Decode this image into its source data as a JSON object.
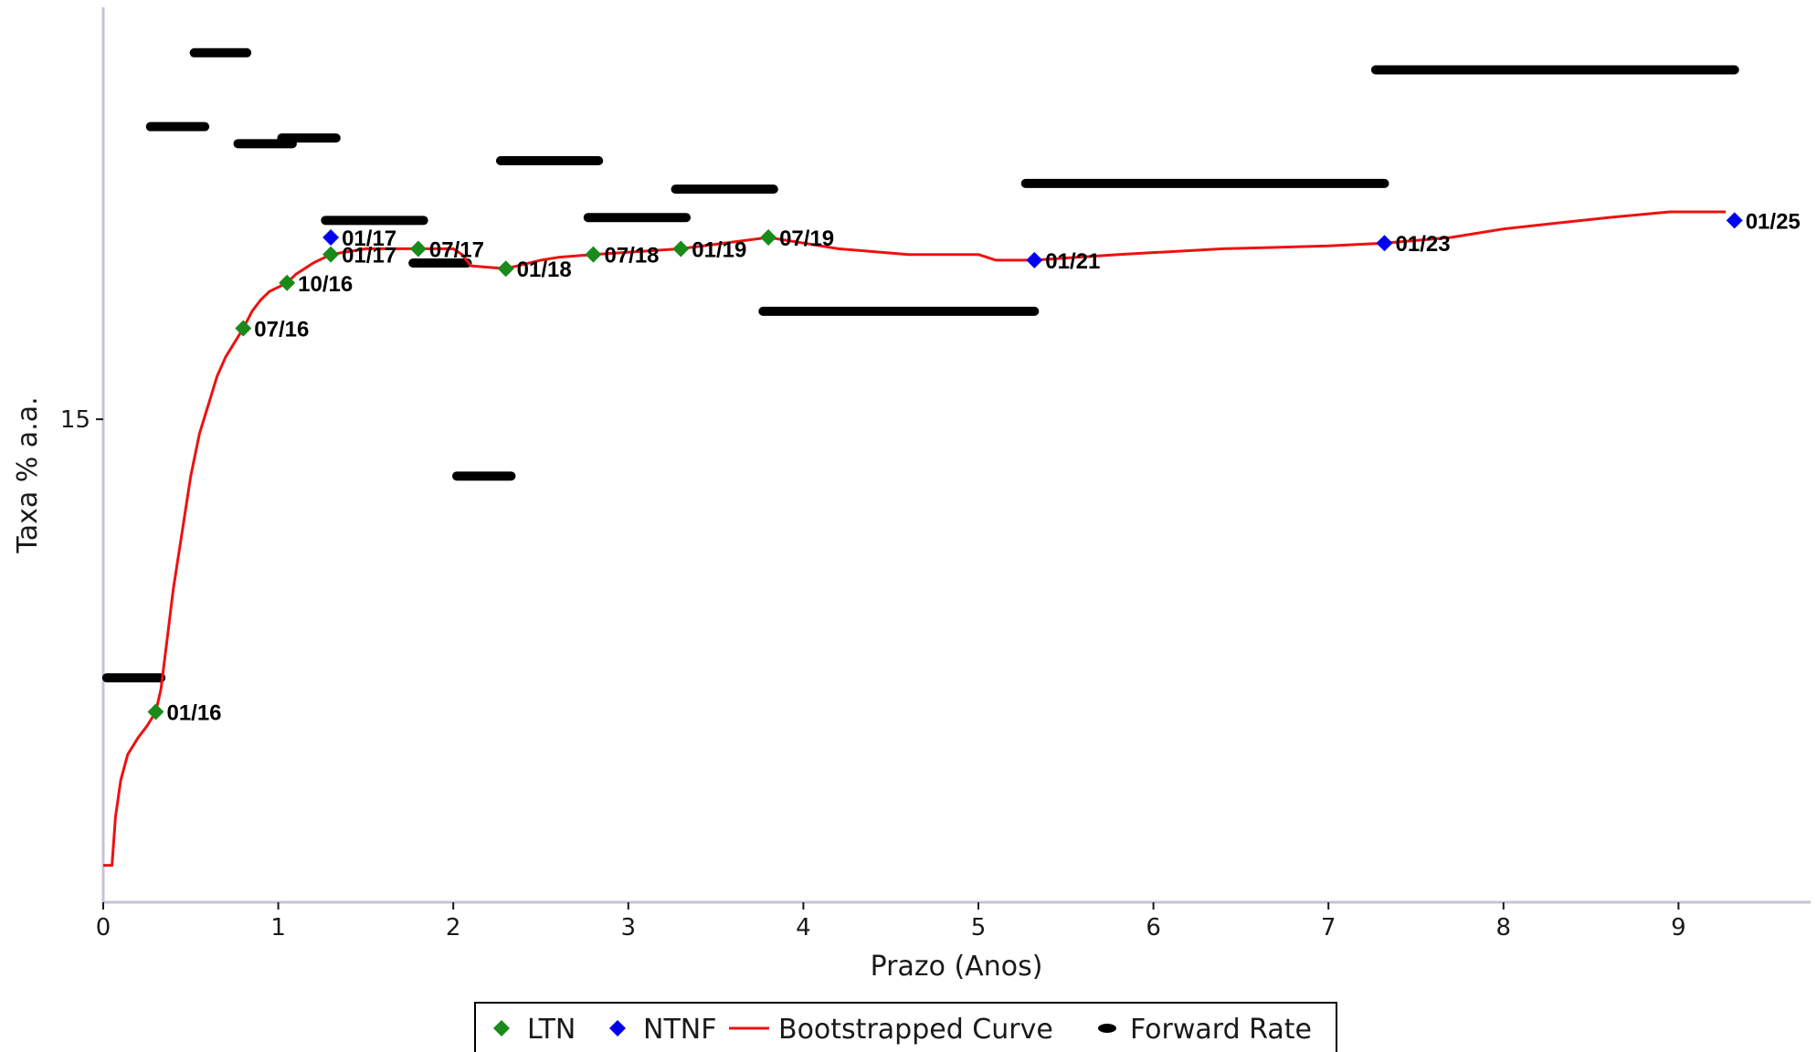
{
  "chart_data": {
    "type": "line",
    "xlabel": "Prazo (Anos)",
    "ylabel": "Taxa % a.a.",
    "xlim": [
      0,
      9.8
    ],
    "ylim": [
      13.3,
      16.45
    ],
    "x_ticks": [
      0,
      1,
      2,
      3,
      4,
      5,
      6,
      7,
      8,
      9
    ],
    "y_ticks": [
      15
    ],
    "legend_placement": "bottom-center",
    "grid": false,
    "legend": [
      "LTN",
      "NTNF",
      "Bootstrapped Curve",
      "Forward Rate"
    ],
    "colors": {
      "LTN": "#1a8a1a",
      "NTNF": "#0000ee",
      "Bootstrapped Curve": "#ee1111",
      "Forward Rate": "#000000"
    },
    "series": [
      {
        "name": "LTN",
        "points": [
          {
            "x": 0.3,
            "y": 13.97,
            "label": "01/16"
          },
          {
            "x": 0.8,
            "y": 15.32,
            "label": "07/16"
          },
          {
            "x": 1.05,
            "y": 15.48,
            "label": "10/16"
          },
          {
            "x": 1.3,
            "y": 15.58,
            "label": "01/17"
          },
          {
            "x": 1.8,
            "y": 15.6,
            "label": "07/17"
          },
          {
            "x": 2.3,
            "y": 15.53,
            "label": "01/18"
          },
          {
            "x": 2.8,
            "y": 15.58,
            "label": "07/18"
          },
          {
            "x": 3.3,
            "y": 15.6,
            "label": "01/19"
          },
          {
            "x": 3.8,
            "y": 15.64,
            "label": "07/19"
          }
        ]
      },
      {
        "name": "NTNF",
        "points": [
          {
            "x": 1.3,
            "y": 15.64,
            "label": "01/17"
          },
          {
            "x": 5.32,
            "y": 15.56,
            "label": "01/21"
          },
          {
            "x": 7.32,
            "y": 15.62,
            "label": "01/23"
          },
          {
            "x": 9.32,
            "y": 15.7,
            "label": "01/25"
          }
        ]
      },
      {
        "name": "Bootstrapped Curve",
        "points": [
          [
            0,
            13.43
          ],
          [
            0.05,
            13.43
          ],
          [
            0.07,
            13.6
          ],
          [
            0.1,
            13.73
          ],
          [
            0.14,
            13.82
          ],
          [
            0.2,
            13.88
          ],
          [
            0.25,
            13.92
          ],
          [
            0.3,
            13.97
          ],
          [
            0.33,
            14.05
          ],
          [
            0.37,
            14.25
          ],
          [
            0.4,
            14.4
          ],
          [
            0.45,
            14.6
          ],
          [
            0.5,
            14.8
          ],
          [
            0.55,
            14.95
          ],
          [
            0.6,
            15.05
          ],
          [
            0.65,
            15.15
          ],
          [
            0.7,
            15.22
          ],
          [
            0.75,
            15.27
          ],
          [
            0.8,
            15.32
          ],
          [
            0.85,
            15.38
          ],
          [
            0.9,
            15.42
          ],
          [
            0.95,
            15.45
          ],
          [
            1.05,
            15.48
          ],
          [
            1.1,
            15.51
          ],
          [
            1.2,
            15.55
          ],
          [
            1.3,
            15.58
          ],
          [
            1.5,
            15.6
          ],
          [
            1.8,
            15.6
          ],
          [
            2.0,
            15.6
          ],
          [
            2.05,
            15.58
          ],
          [
            2.1,
            15.54
          ],
          [
            2.3,
            15.53
          ],
          [
            2.5,
            15.56
          ],
          [
            2.6,
            15.57
          ],
          [
            2.8,
            15.58
          ],
          [
            3.3,
            15.6
          ],
          [
            3.8,
            15.64
          ],
          [
            4.2,
            15.6
          ],
          [
            4.6,
            15.58
          ],
          [
            5.0,
            15.58
          ],
          [
            5.1,
            15.56
          ],
          [
            5.32,
            15.56
          ],
          [
            5.8,
            15.58
          ],
          [
            6.4,
            15.6
          ],
          [
            7.0,
            15.61
          ],
          [
            7.32,
            15.62
          ],
          [
            7.7,
            15.64
          ],
          [
            8.0,
            15.67
          ],
          [
            8.3,
            15.69
          ],
          [
            8.6,
            15.71
          ],
          [
            8.95,
            15.73
          ],
          [
            9.27,
            15.73
          ]
        ]
      },
      {
        "name": "Forward Rate",
        "segments": [
          {
            "x0": 0.02,
            "x1": 0.33,
            "y": 14.09
          },
          {
            "x0": 0.27,
            "x1": 0.58,
            "y": 16.03
          },
          {
            "x0": 0.52,
            "x1": 0.82,
            "y": 16.29
          },
          {
            "x0": 0.77,
            "x1": 1.08,
            "y": 15.97
          },
          {
            "x0": 1.02,
            "x1": 1.33,
            "y": 15.99
          },
          {
            "x0": 1.27,
            "x1": 1.83,
            "y": 15.7
          },
          {
            "x0": 1.77,
            "x1": 2.08,
            "y": 15.55
          },
          {
            "x0": 2.02,
            "x1": 2.33,
            "y": 14.8
          },
          {
            "x0": 2.27,
            "x1": 2.83,
            "y": 15.91
          },
          {
            "x0": 2.77,
            "x1": 3.33,
            "y": 15.71
          },
          {
            "x0": 3.27,
            "x1": 3.83,
            "y": 15.81
          },
          {
            "x0": 3.77,
            "x1": 5.32,
            "y": 15.38
          },
          {
            "x0": 5.27,
            "x1": 7.32,
            "y": 15.83
          },
          {
            "x0": 7.27,
            "x1": 9.32,
            "y": 16.23
          }
        ]
      }
    ]
  }
}
